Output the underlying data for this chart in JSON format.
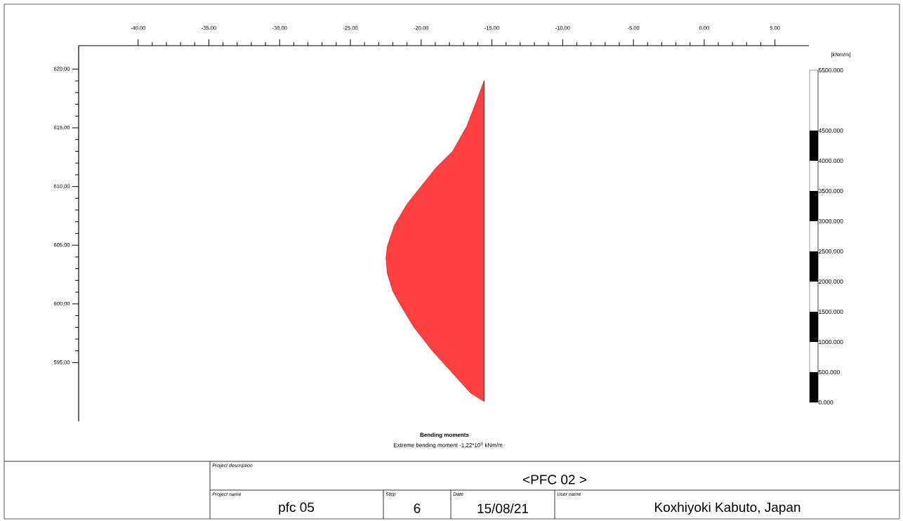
{
  "chart_data": {
    "type": "area",
    "orientation": "horizontal",
    "title": "Bending moments",
    "subtitle": "Extreme bending moment -1,22*10$^{3}$ kNm/m",
    "series": [
      {
        "color": "#ff0000",
        "x": [
          619.0,
          617.4,
          615.1,
          613.0,
          611.5,
          610.0,
          608.5,
          606.7,
          604.9,
          603.9,
          602.6,
          601.1,
          600.0,
          598.0,
          596.0,
          594.0,
          592.4,
          591.7
        ],
        "values": [
          -15.55,
          -16.04,
          -16.78,
          -17.77,
          -19.01,
          -20.0,
          -20.99,
          -21.88,
          -22.38,
          -22.48,
          -22.38,
          -22.0,
          -21.5,
          -20.5,
          -19.2,
          -17.7,
          -16.5,
          -15.55
        ]
      }
    ],
    "xlim": [
      -44.2,
      7.4
    ],
    "xticks": [
      {
        "value": -40,
        "label": "-40.00"
      },
      {
        "value": -35,
        "label": "-35.00"
      },
      {
        "value": -30,
        "label": "-30.00"
      },
      {
        "value": -25,
        "label": "-25.00"
      },
      {
        "value": -20,
        "label": "-20.00"
      },
      {
        "value": -15,
        "label": "-15.00"
      },
      {
        "value": -10,
        "label": "-10.00"
      },
      {
        "value": -5,
        "label": "-5.00"
      },
      {
        "value": 0,
        "label": "0.00"
      },
      {
        "value": 5,
        "label": "5.00"
      }
    ],
    "ylim": [
      590,
      622
    ],
    "yticks": [
      {
        "value": 595,
        "label": "595,00"
      },
      {
        "value": 600,
        "label": "600,00"
      },
      {
        "value": 605,
        "label": "605,00"
      },
      {
        "value": 610,
        "label": "610,00"
      },
      {
        "value": 615,
        "label": "615,00"
      },
      {
        "value": 620,
        "label": "620,00"
      }
    ],
    "y2label": "[kNm/m]",
    "y2lim": [
      0,
      5500
    ],
    "y2ticks": [
      {
        "value": 0,
        "label": "0.000"
      },
      {
        "value": 500,
        "label": "500.000"
      },
      {
        "value": 1000,
        "label": "1000.000"
      },
      {
        "value": 1500,
        "label": "1500.000"
      },
      {
        "value": 2000,
        "label": "2000.000"
      },
      {
        "value": 2500,
        "label": "2500.000"
      },
      {
        "value": 3000,
        "label": "3000.000"
      },
      {
        "value": 3500,
        "label": "3500.000"
      },
      {
        "value": 4000,
        "label": "4000.000"
      },
      {
        "value": 4500,
        "label": "4500.000"
      },
      {
        "value": 5500,
        "label": "5500.000"
      }
    ],
    "grid": false,
    "annotations": [
      "Project description",
      "<PFC 02 >",
      "Project name",
      "pfc 05",
      "Step",
      "6",
      "Date",
      "15/08/21",
      "User name",
      "Koxhiyoki Kabuto, Japan"
    ]
  }
}
